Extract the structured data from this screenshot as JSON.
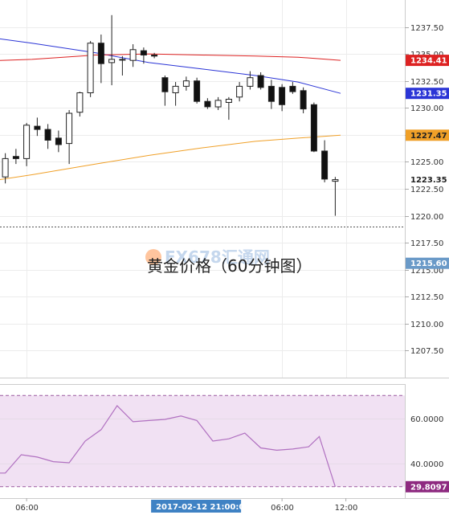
{
  "chart_data": [
    {
      "type": "candlestick",
      "title": "黄金价格（60分钟图）",
      "watermark": "FX678汇通网",
      "ylim": [
        1205.0,
        1240.0
      ],
      "y_ticks": [
        "1207.50",
        "1210.00",
        "1212.50",
        "1215.00",
        "1217.50",
        "1220.00",
        "1222.50",
        "1225.00",
        "1227.50",
        "1230.00",
        "1232.50",
        "1235.00",
        "1237.50"
      ],
      "x_ticks": [
        {
          "label": "06:00",
          "index": 2.5
        },
        {
          "label": "06:00",
          "index": 26.5
        },
        {
          "label": "12:00",
          "index": 32.5
        }
      ],
      "highlighted_time": "2017-02-12 21:00:00",
      "highlighted_time_index": 14.5,
      "candles": [
        {
          "o": 1223.6,
          "h": 1225.8,
          "l": 1223.0,
          "c": 1225.3
        },
        {
          "o": 1225.5,
          "h": 1226.2,
          "l": 1224.8,
          "c": 1225.3
        },
        {
          "o": 1225.3,
          "h": 1228.6,
          "l": 1224.6,
          "c": 1228.4
        },
        {
          "o": 1228.3,
          "h": 1229.1,
          "l": 1227.4,
          "c": 1228.0
        },
        {
          "o": 1228.0,
          "h": 1228.5,
          "l": 1226.2,
          "c": 1227.0
        },
        {
          "o": 1227.2,
          "h": 1227.9,
          "l": 1225.9,
          "c": 1226.6
        },
        {
          "o": 1226.7,
          "h": 1229.8,
          "l": 1224.8,
          "c": 1229.5
        },
        {
          "o": 1229.6,
          "h": 1231.5,
          "l": 1229.2,
          "c": 1231.4
        },
        {
          "o": 1231.4,
          "h": 1236.2,
          "l": 1231.0,
          "c": 1236.0
        },
        {
          "o": 1236.0,
          "h": 1236.8,
          "l": 1232.3,
          "c": 1234.1
        },
        {
          "o": 1234.2,
          "h": 1238.6,
          "l": 1232.1,
          "c": 1234.5
        },
        {
          "o": 1234.5,
          "h": 1234.8,
          "l": 1233.0,
          "c": 1234.5
        },
        {
          "o": 1234.4,
          "h": 1235.9,
          "l": 1233.8,
          "c": 1235.4
        },
        {
          "o": 1235.3,
          "h": 1235.6,
          "l": 1234.1,
          "c": 1234.9
        },
        {
          "o": 1234.9,
          "h": 1235.1,
          "l": 1234.6,
          "c": 1234.8
        },
        {
          "o": 1232.8,
          "h": 1233.0,
          "l": 1230.2,
          "c": 1231.5
        },
        {
          "o": 1231.4,
          "h": 1232.4,
          "l": 1230.2,
          "c": 1232.0
        },
        {
          "o": 1232.0,
          "h": 1232.9,
          "l": 1231.6,
          "c": 1232.5
        },
        {
          "o": 1232.5,
          "h": 1232.8,
          "l": 1230.4,
          "c": 1230.6
        },
        {
          "o": 1230.6,
          "h": 1230.9,
          "l": 1229.9,
          "c": 1230.1
        },
        {
          "o": 1230.1,
          "h": 1231.0,
          "l": 1229.8,
          "c": 1230.7
        },
        {
          "o": 1230.5,
          "h": 1231.0,
          "l": 1228.9,
          "c": 1230.8
        },
        {
          "o": 1231.0,
          "h": 1232.4,
          "l": 1230.6,
          "c": 1232.0
        },
        {
          "o": 1232.0,
          "h": 1233.4,
          "l": 1231.7,
          "c": 1232.8
        },
        {
          "o": 1233.0,
          "h": 1233.3,
          "l": 1231.7,
          "c": 1231.9
        },
        {
          "o": 1232.0,
          "h": 1232.6,
          "l": 1229.9,
          "c": 1230.6
        },
        {
          "o": 1231.9,
          "h": 1232.2,
          "l": 1229.7,
          "c": 1230.3
        },
        {
          "o": 1232.0,
          "h": 1232.4,
          "l": 1231.3,
          "c": 1231.5
        },
        {
          "o": 1231.6,
          "h": 1231.9,
          "l": 1229.5,
          "c": 1229.9
        },
        {
          "o": 1230.3,
          "h": 1230.5,
          "l": 1225.9,
          "c": 1226.0
        },
        {
          "o": 1226.0,
          "h": 1227.0,
          "l": 1223.1,
          "c": 1223.4
        },
        {
          "o": 1223.2,
          "h": 1223.6,
          "l": 1220.0,
          "c": 1223.35
        }
      ],
      "series": [
        {
          "name": "",
          "color": "#2b35d6",
          "points": [
            [
              -3,
              1236.8
            ],
            [
              3,
              1236.0
            ],
            [
              9,
              1235.1
            ],
            [
              14,
              1234.2
            ],
            [
              19,
              1233.6
            ],
            [
              24,
              1233.0
            ],
            [
              28,
              1232.4
            ],
            [
              32,
              1231.35
            ]
          ]
        },
        {
          "name": "",
          "color": "#dd2222",
          "points": [
            [
              -3,
              1234.3
            ],
            [
              3,
              1234.5
            ],
            [
              9,
              1234.9
            ],
            [
              14,
              1235.0
            ],
            [
              19,
              1234.9
            ],
            [
              24,
              1234.8
            ],
            [
              28,
              1234.7
            ],
            [
              32,
              1234.41
            ]
          ]
        },
        {
          "name": "",
          "color": "#f0a028",
          "points": [
            [
              -3,
              1222.9
            ],
            [
              3,
              1223.8
            ],
            [
              9,
              1224.8
            ],
            [
              14,
              1225.6
            ],
            [
              19,
              1226.3
            ],
            [
              24,
              1226.9
            ],
            [
              28,
              1227.2
            ],
            [
              32,
              1227.47
            ]
          ]
        }
      ],
      "reference_line": 1219.0,
      "price_labels": [
        {
          "value": "1234.41",
          "y": 1234.41,
          "bg": "#dd2222",
          "fg": "#ffffff"
        },
        {
          "value": "1231.35",
          "y": 1231.35,
          "bg": "#2b35d6",
          "fg": "#ffffff"
        },
        {
          "value": "1227.47",
          "y": 1227.47,
          "bg": "#f0a028",
          "fg": "#222222"
        },
        {
          "value": "1223.35",
          "y": 1223.35,
          "bg": "#ffffff",
          "fg": "#222222"
        },
        {
          "value": "1215.60",
          "y": 1215.6,
          "bg": "#6a9ac8",
          "fg": "#ffffff"
        }
      ]
    },
    {
      "type": "line",
      "ylim": [
        25.0,
        75.0
      ],
      "y_ticks": [
        "40.0000",
        "60.0000"
      ],
      "band": [
        30.0,
        70.0
      ],
      "band_color": "#f1e1f3",
      "line_color": "#b070c0",
      "current_label": {
        "value": "29.8097",
        "bg": "#8e2a80",
        "fg": "#ffffff"
      },
      "x": [
        -1.0,
        0.5,
        2.0,
        3.5,
        5.0,
        6.5,
        8.0,
        9.5,
        11.0,
        12.5,
        14.0,
        15.5,
        17.0,
        18.5,
        20.0,
        21.5,
        23.0,
        24.5,
        26.0,
        27.5,
        29.0,
        30.0,
        31.5
      ],
      "y": [
        36.0,
        36.0,
        44.0,
        43.0,
        41.0,
        40.5,
        50.0,
        55.0,
        65.5,
        58.5,
        59.0,
        59.5,
        61.0,
        59.0,
        50.0,
        51.0,
        53.5,
        47.0,
        46.0,
        46.5,
        47.5,
        52.0,
        30.0
      ]
    }
  ]
}
